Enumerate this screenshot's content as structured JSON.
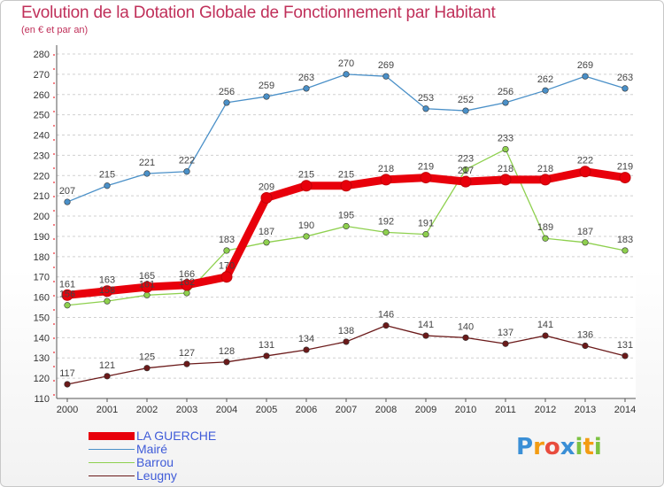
{
  "chart_data": {
    "type": "line",
    "title": "Evolution de la Dotation Globale de Fonctionnement par Habitant",
    "subtitle": "(en € et par an)",
    "xlabel": "",
    "ylabel": "",
    "ylim": [
      110,
      280
    ],
    "y_ticks": [
      110,
      120,
      130,
      140,
      150,
      160,
      170,
      180,
      190,
      200,
      210,
      220,
      230,
      240,
      250,
      260,
      270,
      280
    ],
    "grid": "horizontal dashed",
    "categories": [
      "2000",
      "2001",
      "2002",
      "2003",
      "2004",
      "2005",
      "2006",
      "2007",
      "2008",
      "2009",
      "2010",
      "2011",
      "2012",
      "2013",
      "2014"
    ],
    "series": [
      {
        "name": "LA GUERCHE",
        "color": "#e8000b",
        "values": [
          161,
          163,
          165,
          166,
          170,
          209,
          215,
          215,
          218,
          219,
          217,
          218,
          218,
          222,
          219
        ],
        "labels": [
          "161",
          "163",
          "165",
          "166",
          "170",
          "209",
          "215",
          "215",
          "218",
          "219",
          "217",
          "218",
          "218",
          "222",
          "219"
        ]
      },
      {
        "name": "Mairé",
        "color": "#4a90c8",
        "values": [
          207,
          215,
          221,
          222,
          256,
          259,
          263,
          270,
          269,
          253,
          252,
          256,
          262,
          269,
          263
        ],
        "labels": [
          "207",
          "215",
          "221",
          "222",
          "256",
          "259",
          "263",
          "270",
          "269",
          "253",
          "252",
          "256",
          "262",
          "269",
          "263"
        ]
      },
      {
        "name": "Barrou",
        "color": "#8ed04e",
        "values": [
          156,
          158,
          161,
          162,
          183,
          187,
          190,
          195,
          192,
          191,
          223,
          233,
          189,
          187,
          183
        ],
        "labels": [
          "156",
          "158",
          "161",
          "162",
          "183",
          "187",
          "190",
          "195",
          "192",
          "191",
          "223",
          "233",
          "189",
          "187",
          "183"
        ]
      },
      {
        "name": "Leugny",
        "color": "#6b1a1a",
        "values": [
          117,
          121,
          125,
          127,
          128,
          131,
          134,
          138,
          146,
          141,
          140,
          137,
          141,
          136,
          131
        ],
        "labels": [
          "117",
          "121",
          "125",
          "127",
          "128",
          "131",
          "134",
          "138",
          "146",
          "141",
          "140",
          "137",
          "141",
          "136",
          "131"
        ]
      }
    ],
    "legend_position": "bottom-left"
  },
  "logo": {
    "text": "Proxiti",
    "letters": [
      "P",
      "r",
      "o",
      "x",
      "i",
      "t",
      "i"
    ],
    "colors": [
      "#3a8fd6",
      "#f39c12",
      "#e84c3d",
      "#3a8fd6",
      "#7cc242",
      "#f39c12",
      "#7cc242"
    ]
  }
}
